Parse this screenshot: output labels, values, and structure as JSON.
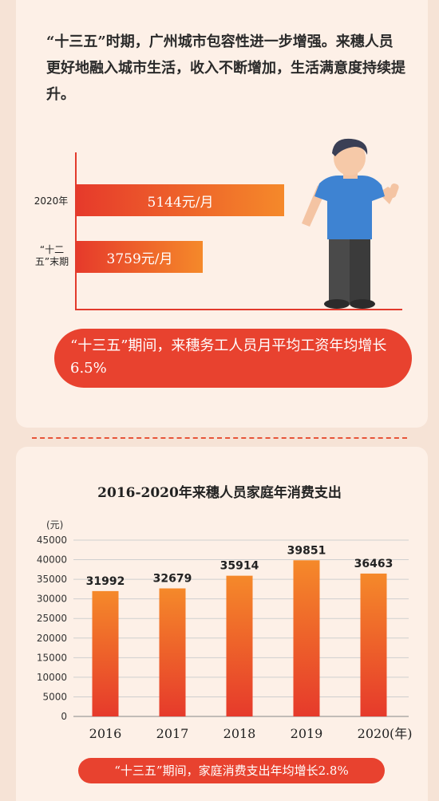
{
  "intro_text": "“十三五”时期，广州城市包容性进一步增强。来穗人员更好地融入城市生活，收入不断增加，生活满意度持续提升。",
  "wage_chart": {
    "type": "bar",
    "orientation": "horizontal",
    "categories": [
      "2020年",
      "“十二五”末期"
    ],
    "values": [
      5144,
      3759
    ],
    "value_labels": [
      "5144元/月",
      "3759元/月"
    ],
    "unit": "元/月"
  },
  "wage_banner": "“十三五”期间，来穗务工人员月平均工资年均增长6.5%",
  "chart_data": {
    "type": "bar",
    "title": "2016-2020年来穗人员家庭年消费支出",
    "categories": [
      "2016",
      "2017",
      "2018",
      "2019",
      "2020"
    ],
    "values": [
      31992,
      32679,
      35914,
      39851,
      36463
    ],
    "ylabel": "(元)",
    "xlabel": "(年)",
    "ylim": [
      0,
      45000
    ],
    "yticks": [
      0,
      5000,
      10000,
      15000,
      20000,
      25000,
      30000,
      35000,
      40000,
      45000
    ],
    "grid": true
  },
  "spending_banner": "“十三五”期间，家庭消费支出年均增长2.8%",
  "colors": {
    "accent_red": "#e8422f",
    "bar_top": "#f5892a",
    "bar_bottom": "#e63a2b",
    "background": "#fdf0e7"
  }
}
